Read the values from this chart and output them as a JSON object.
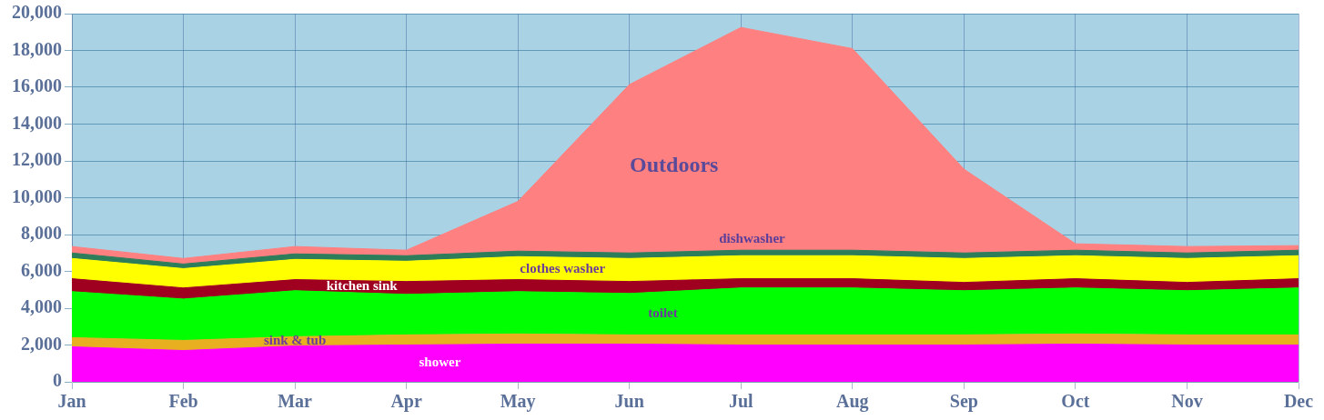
{
  "chart_data": {
    "type": "area",
    "stacked": true,
    "categories": [
      "Jan",
      "Feb",
      "Mar",
      "Apr",
      "May",
      "Jun",
      "Jul",
      "Aug",
      "Sep",
      "Oct",
      "Nov",
      "Dec"
    ],
    "series": [
      {
        "name": "shower",
        "color": "#ff00ff",
        "values": [
          1900,
          1700,
          1950,
          2000,
          2050,
          2050,
          2000,
          2000,
          2000,
          2050,
          2000,
          2000
        ]
      },
      {
        "name": "sink & tub",
        "color": "#e8b020",
        "values": [
          500,
          550,
          500,
          550,
          550,
          500,
          550,
          550,
          550,
          550,
          550,
          550
        ]
      },
      {
        "name": "toilet",
        "color": "#00ff00",
        "values": [
          2500,
          2250,
          2500,
          2200,
          2300,
          2250,
          2550,
          2550,
          2400,
          2500,
          2400,
          2550
        ]
      },
      {
        "name": "kitchen sink",
        "color": "#a00020",
        "values": [
          700,
          600,
          600,
          700,
          650,
          650,
          500,
          500,
          450,
          500,
          450,
          500
        ]
      },
      {
        "name": "clothes washer",
        "color": "#ffff00",
        "values": [
          1100,
          1050,
          1100,
          1100,
          1250,
          1250,
          1250,
          1250,
          1300,
          1250,
          1300,
          1250
        ]
      },
      {
        "name": "dishwasher",
        "color": "#2e7d5a",
        "values": [
          300,
          250,
          300,
          300,
          300,
          300,
          300,
          300,
          300,
          300,
          300,
          300
        ]
      },
      {
        "name": "Outdoors",
        "color": "#ff8080",
        "values": [
          350,
          300,
          400,
          300,
          2700,
          9150,
          12100,
          10950,
          4550,
          350,
          350,
          250
        ]
      }
    ],
    "ylim": [
      0,
      20000
    ],
    "yticks": [
      0,
      {
        "value": 2000,
        "label": "2,000"
      },
      {
        "value": 4000,
        "label": "4,000"
      },
      {
        "value": 6000,
        "label": "6,000"
      },
      {
        "value": 8000,
        "label": "8,000"
      },
      {
        "value": 10000,
        "label": "10,000"
      },
      {
        "value": 12000,
        "label": "12,000"
      },
      {
        "value": 14000,
        "label": "14,000"
      },
      {
        "value": 16000,
        "label": "16,000"
      },
      {
        "value": 18000,
        "label": "18,000"
      },
      {
        "value": 20000,
        "label": "20,000"
      }
    ],
    "grid": true,
    "legend": false
  }
}
